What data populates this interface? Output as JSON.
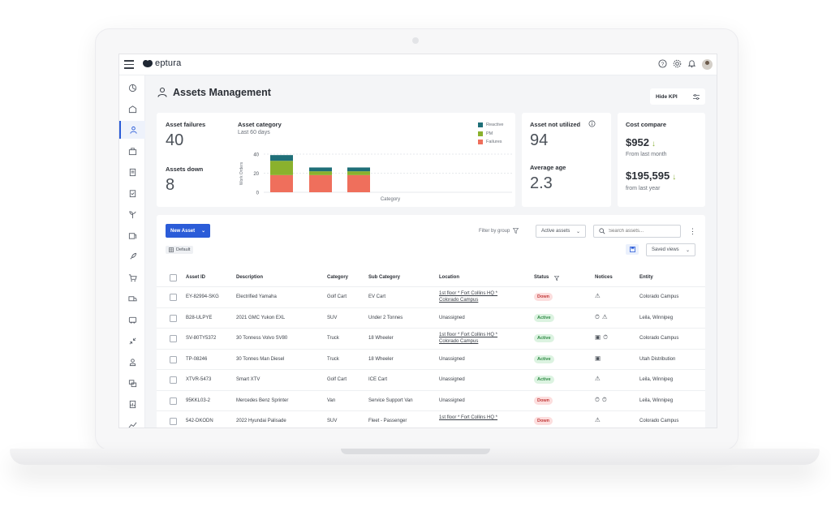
{
  "app": {
    "logo_text": "eptura"
  },
  "colors": {
    "primary": "#2b5cd8",
    "reactive": "#1f6f78",
    "pm": "#8ab12d",
    "failures": "#ef6f5c"
  },
  "topbar": {
    "icons": [
      "help-icon",
      "settings-icon",
      "bell-icon",
      "avatar"
    ]
  },
  "sidebar": {
    "items": [
      "dashboard-icon",
      "assets-building-icon",
      "assets-management-icon",
      "inventory-icon",
      "document-icon",
      "clipboard-icon",
      "plant-icon",
      "work-order-icon",
      "rocket-icon",
      "cart-icon",
      "truck-icon",
      "vehicle-icon",
      "collapse-arrows-icon",
      "user-badge-icon",
      "people-icon",
      "report-icon",
      "analytics-icon",
      "settings-gear-icon"
    ],
    "active_index": 2
  },
  "page": {
    "title": "Assets Management",
    "hide_kpi": "Hide KPI"
  },
  "kpis": {
    "asset_failures": {
      "label": "Asset failures",
      "value": "40"
    },
    "assets_down": {
      "label": "Assets down",
      "value": "8"
    },
    "asset_not_utilized": {
      "label": "Asset not utilized",
      "value": "94"
    },
    "average_age": {
      "label": "Average age",
      "value": "2.3"
    },
    "cost_compare": {
      "label": "Cost compare",
      "value1": "$952",
      "sub1": "From last month",
      "value2": "$195,595",
      "sub2": "from last year"
    }
  },
  "chart_data": {
    "type": "bar",
    "title": "Asset category",
    "subtitle": "Last 60 days",
    "xlabel": "Category",
    "ylabel": "Work Orders",
    "ylim": [
      0,
      40
    ],
    "yticks": [
      0,
      20,
      40
    ],
    "categories": [
      "",
      "",
      ""
    ],
    "stacked": true,
    "legend_position": "top-right",
    "series": [
      {
        "name": "Failures",
        "color": "#ef6f5c",
        "values": [
          18,
          18,
          18
        ]
      },
      {
        "name": "PM",
        "color": "#8ab12d",
        "values": [
          15,
          4,
          4
        ]
      },
      {
        "name": "Reactive",
        "color": "#1f6f78",
        "values": [
          6,
          4,
          4
        ]
      }
    ]
  },
  "toolbar": {
    "new_asset": "New Asset",
    "filter_by_group": "Filter by group",
    "active_assets": "Active assets",
    "search_placeholder": "Search assets...",
    "default_chip": "Default",
    "saved_views": "Saved views"
  },
  "table": {
    "headers": {
      "asset_id": "Asset ID",
      "description": "Description",
      "category": "Category",
      "sub_category": "Sub Category",
      "location": "Location",
      "status": "Status",
      "notices": "Notices",
      "entity": "Entity"
    },
    "rows": [
      {
        "asset_id": "EY-82994-SKG",
        "description": "Electrified Yamaha",
        "category": "Golf Cart",
        "sub_category": "EV Cart",
        "location1": "1st floor * Fort Collins HQ *",
        "location2": "Colorado Campus",
        "status": "Down",
        "notices": [
          "warning-icon"
        ],
        "entity": "Colorado Campus"
      },
      {
        "asset_id": "B28-ULPYE",
        "description": "2021 GMC Yukon EXL",
        "category": "SUV",
        "sub_category": "Under 2 Tonnes",
        "location1": "Unassigned",
        "location2": "",
        "status": "Active",
        "notices": [
          "timer-icon",
          "warning-icon"
        ],
        "entity": "Leila, Winnipeg"
      },
      {
        "asset_id": "SV-80TY5372",
        "description": "30 Tonness Volvo SV80",
        "category": "Truck",
        "sub_category": "18 Wheeler",
        "location1": "1st floor * Fort Collins HQ *",
        "location2": "Colorado Campus",
        "status": "Active",
        "notices": [
          "toolbox-icon",
          "timer-icon"
        ],
        "entity": "Colorado Campus"
      },
      {
        "asset_id": "TP-08246",
        "description": "30 Tonnes Man Diesel",
        "category": "Truck",
        "sub_category": "18 Wheeler",
        "location1": "Unassigned",
        "location2": "",
        "status": "Active",
        "notices": [
          "toolbox-icon"
        ],
        "entity": "Utah Distribution"
      },
      {
        "asset_id": "XTVR-5473",
        "description": "Smart XTV",
        "category": "Golf Cart",
        "sub_category": "ICE Cart",
        "location1": "Unassigned",
        "location2": "",
        "status": "Active",
        "notices": [
          "warning-icon"
        ],
        "entity": "Leila, Winnipeg"
      },
      {
        "asset_id": "95KKL03-2",
        "description": "Mercedes Benz Sprinter",
        "category": "Van",
        "sub_category": "Service Support Van",
        "location1": "Unassigned",
        "location2": "",
        "status": "Down",
        "notices": [
          "timer-icon",
          "timer-icon"
        ],
        "entity": "Leila, Winnipeg"
      },
      {
        "asset_id": "542-DKODN",
        "description": "2022 Hyundai Palisade",
        "category": "SUV",
        "sub_category": "Fleet - Passenger",
        "location1": "1st floor * Fort Collins HQ *",
        "location2": "",
        "status": "Down",
        "notices": [
          "warning-icon"
        ],
        "entity": "Colorado Campus"
      }
    ]
  }
}
